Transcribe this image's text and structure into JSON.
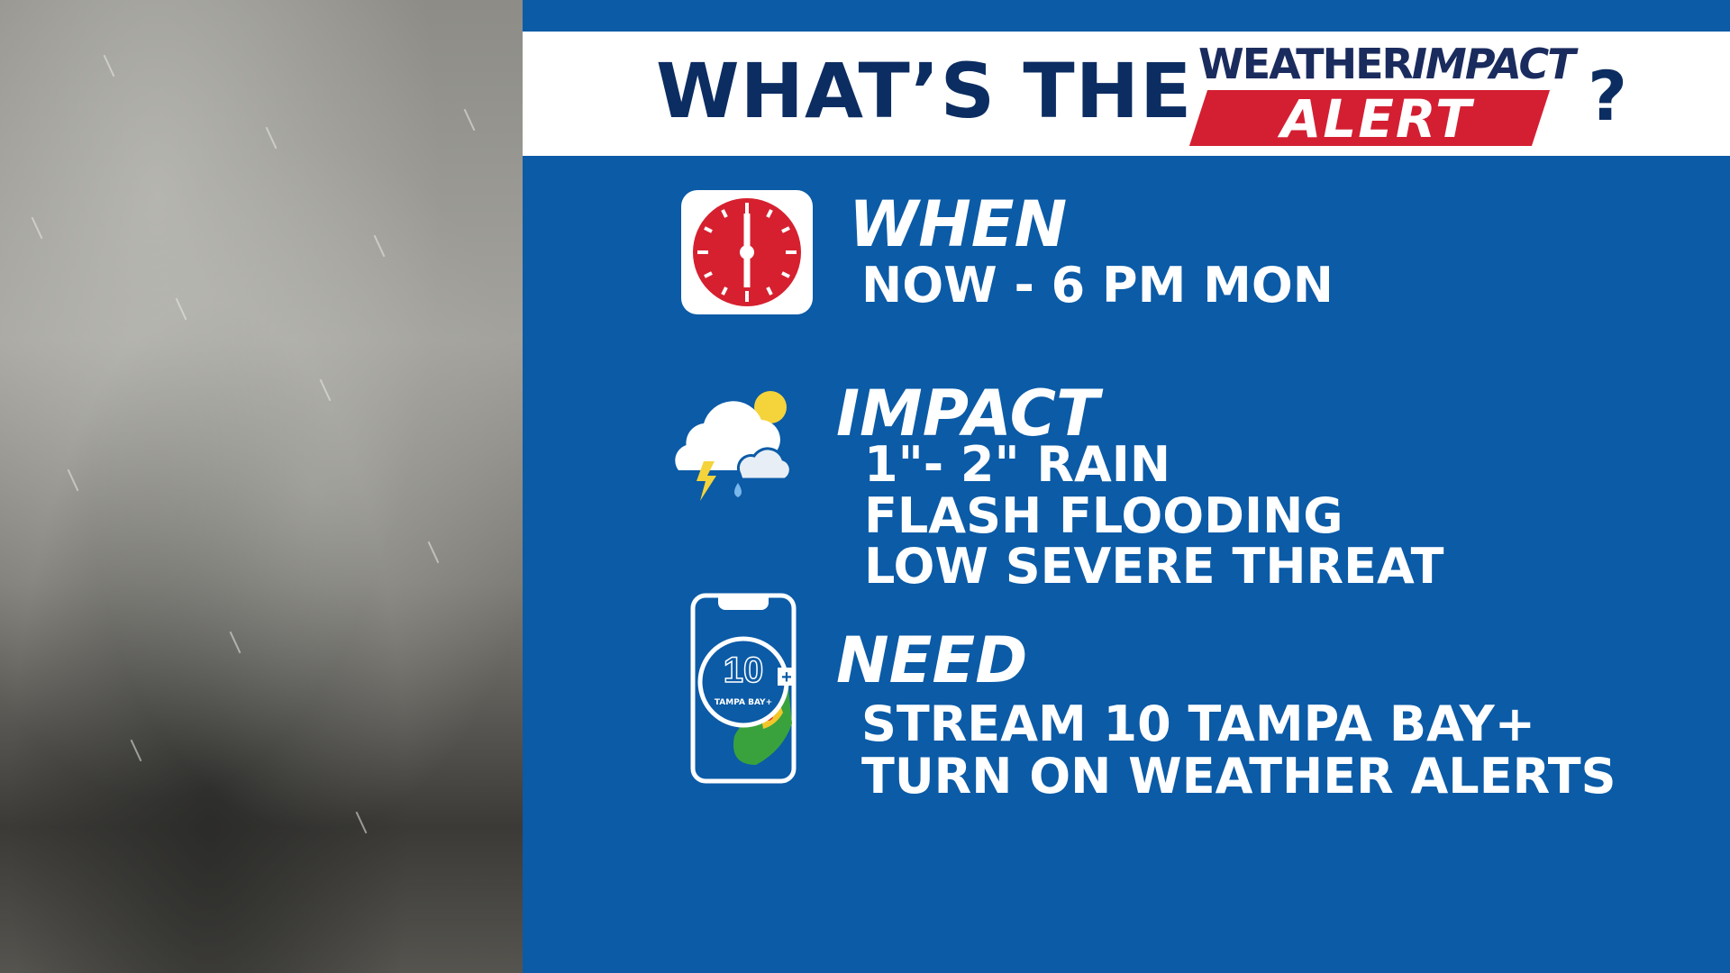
{
  "header": {
    "title": "WHAT’S THE",
    "logo": {
      "line1_a": "WEATHER",
      "line1_b": "IMPACT",
      "line2": "ALERT"
    },
    "question_mark": "?"
  },
  "sections": {
    "when": {
      "heading": "WHEN",
      "icon": "clock-icon",
      "lines": [
        "NOW - 6 PM MON"
      ]
    },
    "impact": {
      "heading": "IMPACT",
      "icon": "storm-cloud-icon",
      "lines": [
        "1\"- 2\" RAIN",
        "FLASH FLOODING",
        "LOW SEVERE THREAT"
      ]
    },
    "need": {
      "heading": "NEED",
      "icon": "phone-app-icon",
      "app_label": "TAMPA BAY+",
      "lines": [
        "STREAM 10 TAMPA BAY+",
        "TURN ON WEATHER ALERTS"
      ]
    }
  },
  "colors": {
    "background": "#0b5ba7",
    "navy": "#0c2d62",
    "alert_red": "#d41f32",
    "clock_red": "#d6202f"
  }
}
